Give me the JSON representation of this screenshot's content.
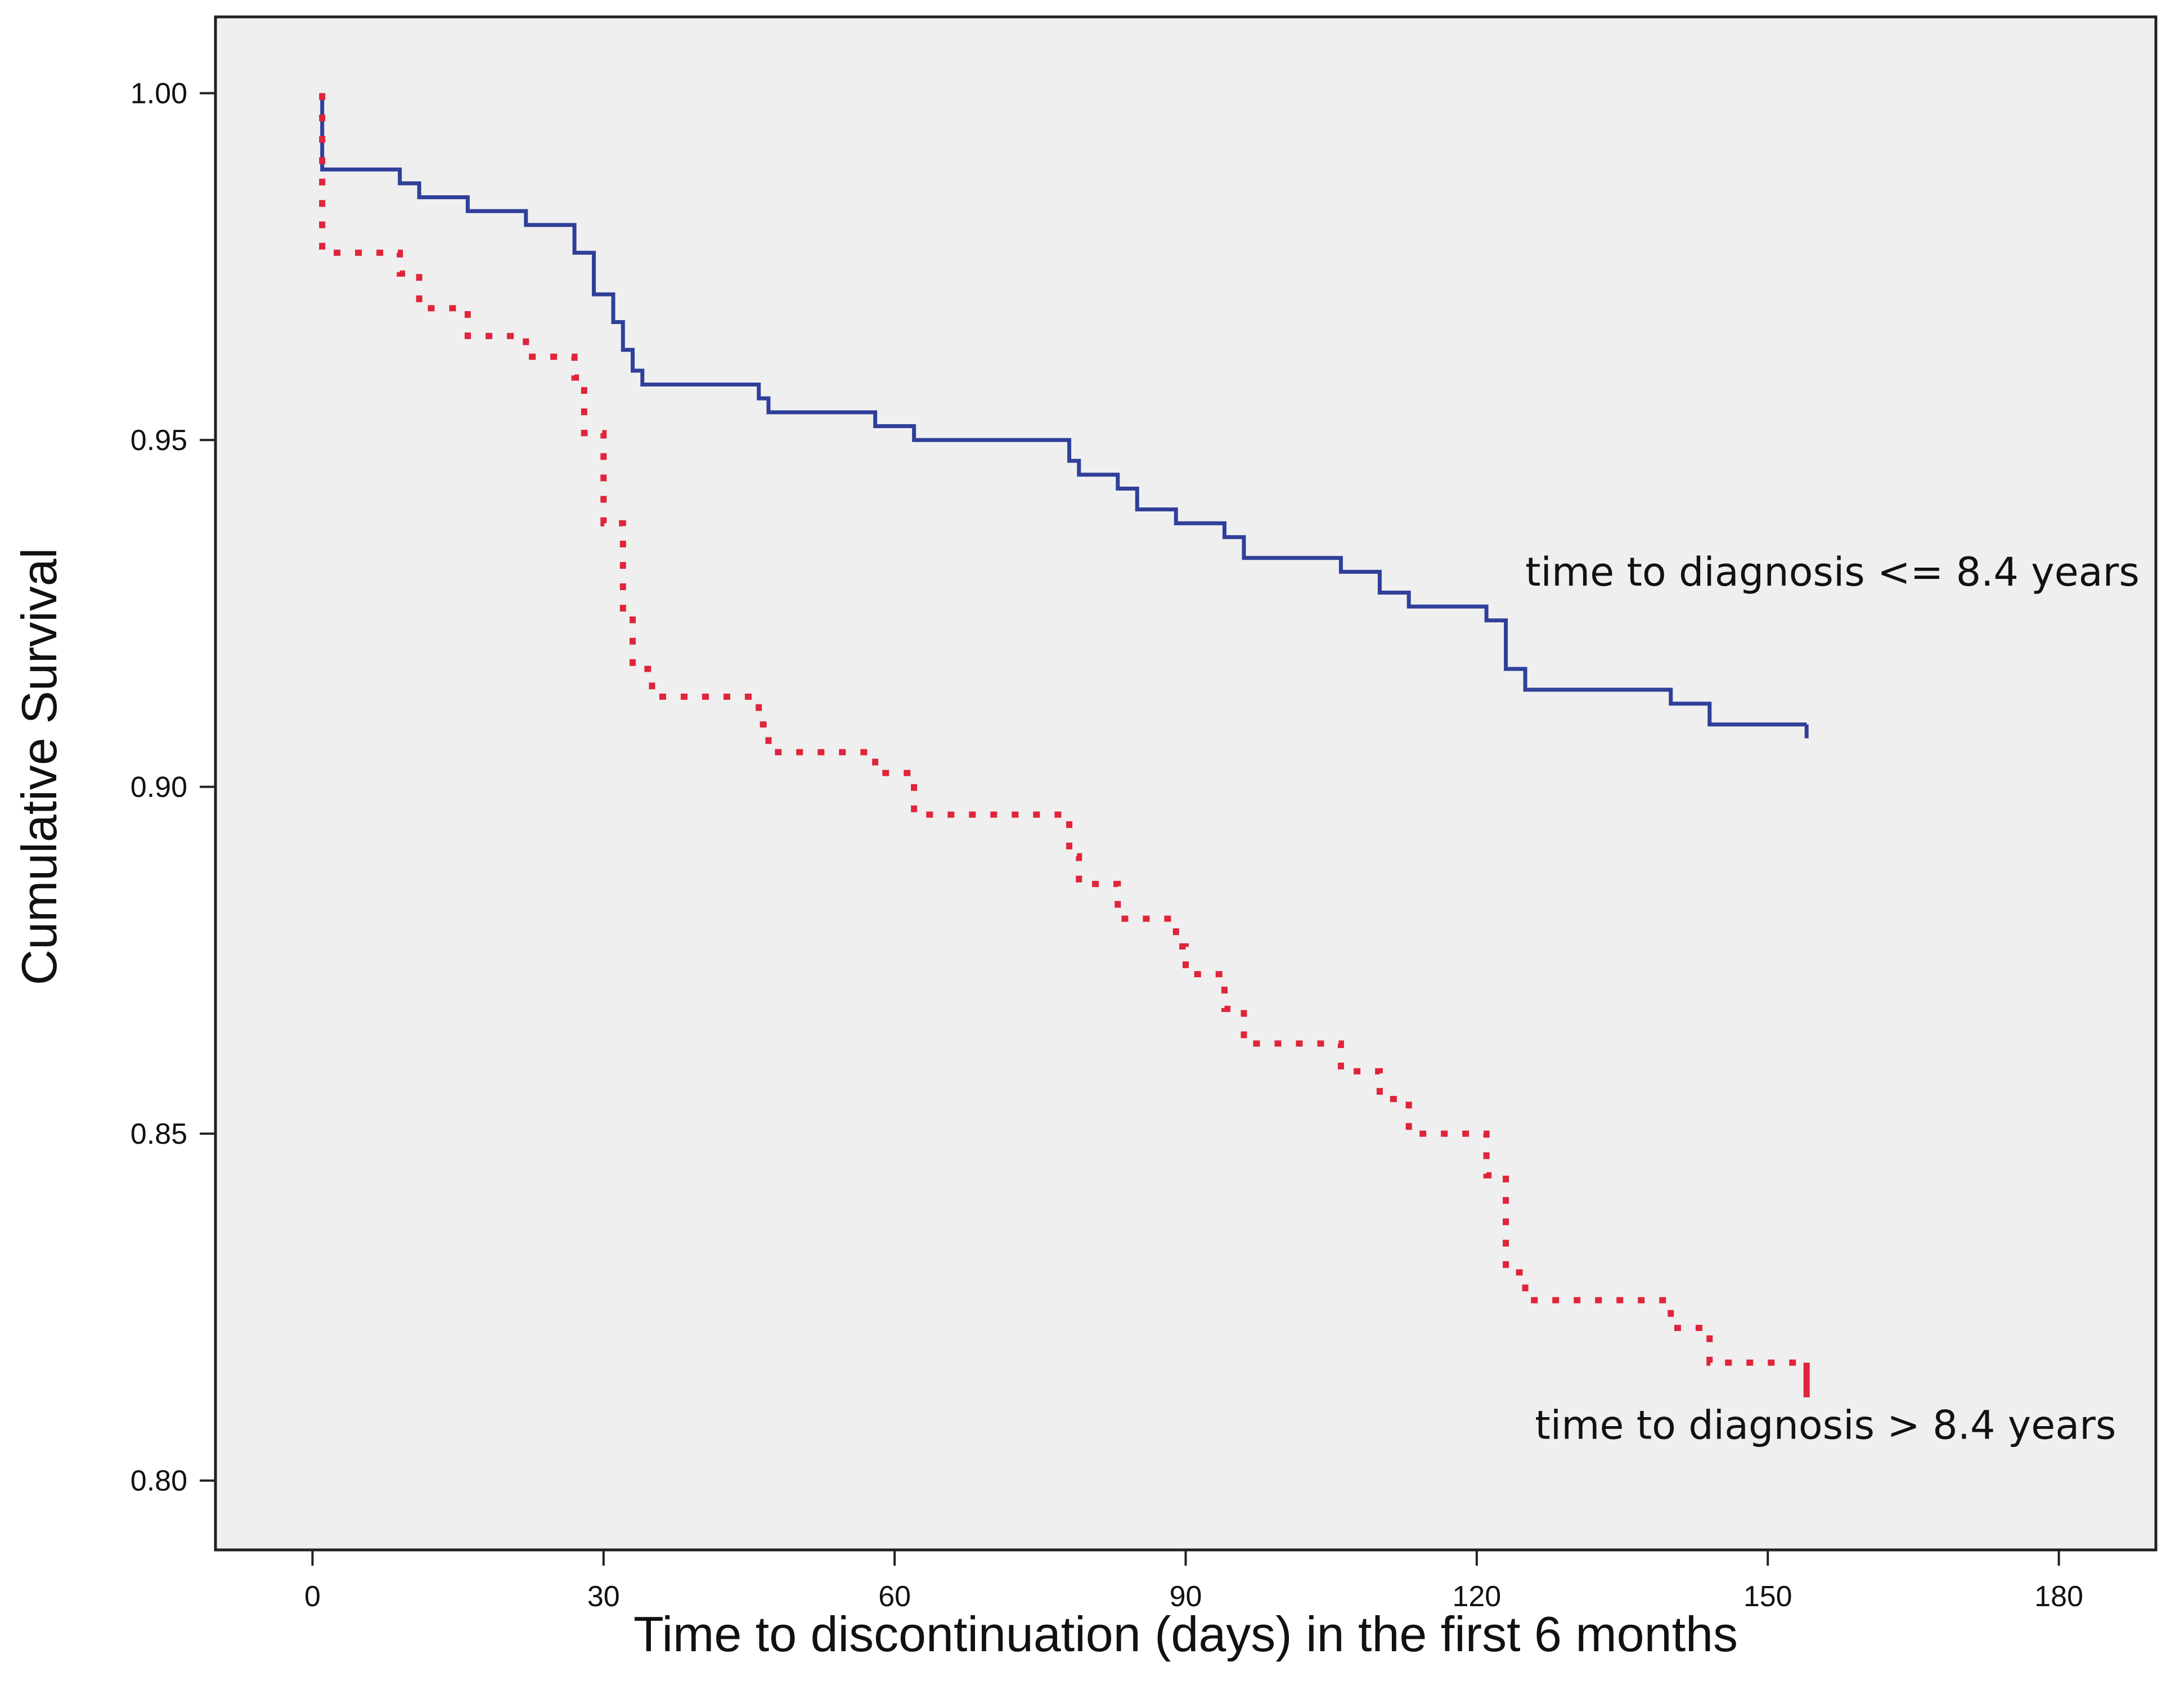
{
  "chart_data": {
    "type": "line",
    "subtype": "kaplan-meier step curves",
    "xlabel": "Time to discontinuation (days) in the first 6 months",
    "ylabel": "Cumulative Survival",
    "xlim": [
      -10,
      190
    ],
    "ylim": [
      0.79,
      1.011
    ],
    "x_ticks": [
      0,
      30,
      60,
      90,
      120,
      150,
      180
    ],
    "x_tick_labels": [
      "0",
      "30",
      "60",
      "90",
      "120",
      "150",
      "180"
    ],
    "y_ticks": [
      0.8,
      0.85,
      0.9,
      0.95,
      1.0
    ],
    "y_tick_labels": [
      "0.80",
      "0.85",
      "0.90",
      "0.95",
      "1.00"
    ],
    "plot_background": "#efefef",
    "grid": false,
    "series": [
      {
        "name": "time to diagnosis <= 8.4 years",
        "color": "#2f3f9a",
        "style": "solid",
        "steps": [
          [
            1,
            1.0
          ],
          [
            1,
            0.989
          ],
          [
            9,
            0.987
          ],
          [
            11,
            0.985
          ],
          [
            16,
            0.983
          ],
          [
            22,
            0.981
          ],
          [
            27,
            0.977
          ],
          [
            29,
            0.971
          ],
          [
            31,
            0.967
          ],
          [
            32,
            0.963
          ],
          [
            33,
            0.96
          ],
          [
            34,
            0.958
          ],
          [
            46,
            0.956
          ],
          [
            47,
            0.954
          ],
          [
            58,
            0.952
          ],
          [
            62,
            0.95
          ],
          [
            78,
            0.947
          ],
          [
            79,
            0.945
          ],
          [
            83,
            0.943
          ],
          [
            85,
            0.94
          ],
          [
            89,
            0.938
          ],
          [
            94,
            0.936
          ],
          [
            96,
            0.933
          ],
          [
            106,
            0.931
          ],
          [
            110,
            0.928
          ],
          [
            113,
            0.926
          ],
          [
            121,
            0.924
          ],
          [
            123,
            0.917
          ],
          [
            125,
            0.914
          ],
          [
            140,
            0.912
          ],
          [
            144,
            0.909
          ]
        ],
        "end_x": 154,
        "censor_end_y": 0.907
      },
      {
        "name": "time to diagnosis > 8.4 years",
        "color": "#e0243a",
        "style": "dotted",
        "steps": [
          [
            1,
            1.0
          ],
          [
            1,
            0.977
          ],
          [
            9,
            0.974
          ],
          [
            11,
            0.969
          ],
          [
            16,
            0.965
          ],
          [
            22,
            0.962
          ],
          [
            27,
            0.959
          ],
          [
            28,
            0.951
          ],
          [
            30,
            0.938
          ],
          [
            32,
            0.925
          ],
          [
            33,
            0.917
          ],
          [
            35,
            0.913
          ],
          [
            46,
            0.909
          ],
          [
            47,
            0.905
          ],
          [
            58,
            0.902
          ],
          [
            62,
            0.896
          ],
          [
            78,
            0.89
          ],
          [
            79,
            0.886
          ],
          [
            83,
            0.881
          ],
          [
            89,
            0.877
          ],
          [
            90,
            0.873
          ],
          [
            94,
            0.868
          ],
          [
            96,
            0.863
          ],
          [
            106,
            0.859
          ],
          [
            110,
            0.855
          ],
          [
            113,
            0.85
          ],
          [
            121,
            0.844
          ],
          [
            123,
            0.83
          ],
          [
            125,
            0.826
          ],
          [
            140,
            0.822
          ],
          [
            144,
            0.817
          ]
        ],
        "end_x": 154,
        "censor_end_y": 0.812
      }
    ],
    "annotations": [
      {
        "text": "time to diagnosis <= 8.4 years",
        "x": 125,
        "y": 0.929,
        "series": 0
      },
      {
        "text": "time to diagnosis > 8.4 years",
        "x": 126,
        "y": 0.806,
        "series": 1
      }
    ]
  }
}
